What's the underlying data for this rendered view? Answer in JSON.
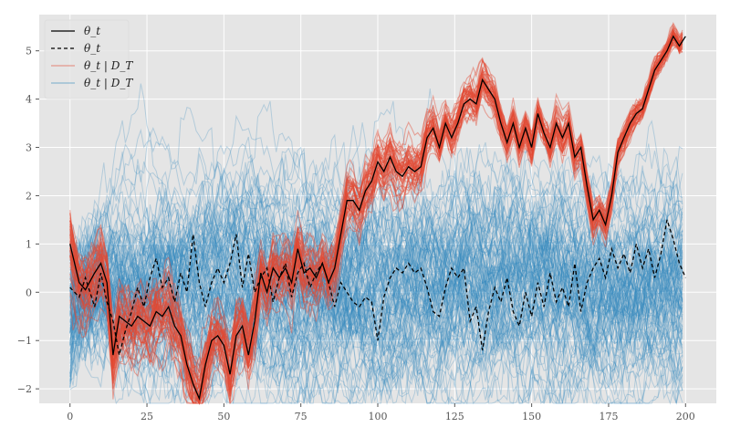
{
  "chart_data": {
    "type": "line",
    "title": "",
    "xlabel": "",
    "ylabel": "",
    "xlim": [
      -10,
      210
    ],
    "ylim": [
      -2.3,
      5.75
    ],
    "xticks": [
      0,
      25,
      50,
      75,
      100,
      125,
      150,
      175,
      200
    ],
    "yticks": [
      -2,
      -1,
      0,
      1,
      2,
      3,
      4,
      5
    ],
    "grid": true,
    "legend_position": "top-left",
    "n_steps": 200,
    "legend": [
      {
        "label": "θ_t",
        "style": "solid",
        "color": "#000000"
      },
      {
        "label": "θ_t",
        "style": "dashed",
        "color": "#000000"
      },
      {
        "label": "θ_t | D_T",
        "style": "solid",
        "color": "#e24a33"
      },
      {
        "label": "θ_t | D_T",
        "style": "solid",
        "color": "#348abd"
      }
    ],
    "series": [
      {
        "name": "θ_t",
        "color": "#000000",
        "style": "solid",
        "points": [
          [
            0,
            1.0
          ],
          [
            3,
            0.2
          ],
          [
            5,
            0.05
          ],
          [
            8,
            0.4
          ],
          [
            10,
            0.6
          ],
          [
            12,
            0.2
          ],
          [
            14,
            -1.3
          ],
          [
            16,
            -0.5
          ],
          [
            18,
            -0.6
          ],
          [
            20,
            -0.7
          ],
          [
            22,
            -0.5
          ],
          [
            24,
            -0.6
          ],
          [
            26,
            -0.7
          ],
          [
            28,
            -0.4
          ],
          [
            30,
            -0.5
          ],
          [
            32,
            -0.3
          ],
          [
            34,
            -0.7
          ],
          [
            36,
            -0.9
          ],
          [
            38,
            -1.5
          ],
          [
            40,
            -1.9
          ],
          [
            42,
            -2.2
          ],
          [
            44,
            -1.5
          ],
          [
            46,
            -1.0
          ],
          [
            48,
            -0.9
          ],
          [
            50,
            -1.1
          ],
          [
            52,
            -1.7
          ],
          [
            54,
            -0.9
          ],
          [
            56,
            -0.7
          ],
          [
            58,
            -1.3
          ],
          [
            60,
            -0.6
          ],
          [
            62,
            0.4
          ],
          [
            64,
            0.0
          ],
          [
            66,
            0.5
          ],
          [
            68,
            0.3
          ],
          [
            70,
            0.5
          ],
          [
            72,
            0.2
          ],
          [
            74,
            0.9
          ],
          [
            76,
            0.4
          ],
          [
            78,
            0.5
          ],
          [
            80,
            0.3
          ],
          [
            82,
            0.6
          ],
          [
            84,
            0.2
          ],
          [
            86,
            0.5
          ],
          [
            88,
            1.2
          ],
          [
            90,
            1.9
          ],
          [
            92,
            1.9
          ],
          [
            94,
            1.7
          ],
          [
            96,
            2.1
          ],
          [
            98,
            2.3
          ],
          [
            100,
            2.7
          ],
          [
            102,
            2.5
          ],
          [
            104,
            2.8
          ],
          [
            106,
            2.5
          ],
          [
            108,
            2.4
          ],
          [
            110,
            2.6
          ],
          [
            112,
            2.5
          ],
          [
            114,
            2.6
          ],
          [
            116,
            3.2
          ],
          [
            118,
            3.4
          ],
          [
            120,
            3.0
          ],
          [
            122,
            3.5
          ],
          [
            124,
            3.2
          ],
          [
            126,
            3.5
          ],
          [
            128,
            3.9
          ],
          [
            130,
            4.0
          ],
          [
            132,
            3.9
          ],
          [
            134,
            4.4
          ],
          [
            136,
            4.2
          ],
          [
            138,
            4.0
          ],
          [
            140,
            3.5
          ],
          [
            142,
            3.1
          ],
          [
            144,
            3.5
          ],
          [
            146,
            3.0
          ],
          [
            148,
            3.4
          ],
          [
            150,
            3.0
          ],
          [
            152,
            3.7
          ],
          [
            154,
            3.3
          ],
          [
            156,
            3.0
          ],
          [
            158,
            3.5
          ],
          [
            160,
            3.2
          ],
          [
            162,
            3.5
          ],
          [
            164,
            2.8
          ],
          [
            166,
            3.0
          ],
          [
            168,
            2.2
          ],
          [
            170,
            1.5
          ],
          [
            172,
            1.7
          ],
          [
            174,
            1.4
          ],
          [
            176,
            2.0
          ],
          [
            178,
            2.9
          ],
          [
            180,
            3.2
          ],
          [
            182,
            3.5
          ],
          [
            184,
            3.7
          ],
          [
            186,
            3.8
          ],
          [
            188,
            4.2
          ],
          [
            190,
            4.6
          ],
          [
            192,
            4.8
          ],
          [
            194,
            5.0
          ],
          [
            196,
            5.3
          ],
          [
            198,
            5.1
          ],
          [
            200,
            5.3
          ]
        ]
      },
      {
        "name": "θ_t",
        "color": "#000000",
        "style": "dashed",
        "points": [
          [
            0,
            0.1
          ],
          [
            3,
            -0.1
          ],
          [
            5,
            0.3
          ],
          [
            8,
            -0.3
          ],
          [
            10,
            0.4
          ],
          [
            12,
            -0.2
          ],
          [
            14,
            -0.6
          ],
          [
            16,
            -1.3
          ],
          [
            18,
            -0.8
          ],
          [
            20,
            -0.4
          ],
          [
            22,
            0.1
          ],
          [
            24,
            -0.3
          ],
          [
            26,
            0.3
          ],
          [
            28,
            0.7
          ],
          [
            30,
            0.1
          ],
          [
            32,
            0.3
          ],
          [
            34,
            -0.2
          ],
          [
            36,
            0.4
          ],
          [
            38,
            0.0
          ],
          [
            40,
            1.2
          ],
          [
            42,
            0.2
          ],
          [
            44,
            -0.3
          ],
          [
            46,
            0.2
          ],
          [
            48,
            0.5
          ],
          [
            50,
            0.2
          ],
          [
            52,
            0.6
          ],
          [
            54,
            1.2
          ],
          [
            56,
            0.1
          ],
          [
            58,
            0.8
          ],
          [
            60,
            0.0
          ],
          [
            62,
            0.3
          ],
          [
            64,
            0.5
          ],
          [
            66,
            -0.2
          ],
          [
            68,
            0.3
          ],
          [
            70,
            0.6
          ],
          [
            72,
            -0.1
          ],
          [
            74,
            0.4
          ],
          [
            76,
            0.6
          ],
          [
            78,
            0.1
          ],
          [
            80,
            0.4
          ],
          [
            82,
            0.6
          ],
          [
            84,
            0.2
          ],
          [
            86,
            -0.3
          ],
          [
            88,
            0.2
          ],
          [
            90,
            0.0
          ],
          [
            92,
            -0.2
          ],
          [
            94,
            -0.3
          ],
          [
            96,
            -0.1
          ],
          [
            98,
            -0.2
          ],
          [
            100,
            -1.0
          ],
          [
            102,
            -0.1
          ],
          [
            104,
            0.3
          ],
          [
            106,
            0.5
          ],
          [
            108,
            0.4
          ],
          [
            110,
            0.6
          ],
          [
            112,
            0.4
          ],
          [
            114,
            0.5
          ],
          [
            116,
            0.1
          ],
          [
            118,
            -0.4
          ],
          [
            120,
            -0.5
          ],
          [
            122,
            0.1
          ],
          [
            124,
            0.5
          ],
          [
            126,
            0.3
          ],
          [
            128,
            0.5
          ],
          [
            130,
            -0.6
          ],
          [
            132,
            -0.3
          ],
          [
            134,
            -1.2
          ],
          [
            136,
            -0.4
          ],
          [
            138,
            0.1
          ],
          [
            140,
            -0.2
          ],
          [
            142,
            0.3
          ],
          [
            144,
            -0.4
          ],
          [
            146,
            -0.7
          ],
          [
            148,
            0.0
          ],
          [
            150,
            -0.5
          ],
          [
            152,
            0.2
          ],
          [
            154,
            -0.3
          ],
          [
            156,
            0.4
          ],
          [
            158,
            -0.2
          ],
          [
            160,
            0.1
          ],
          [
            162,
            -0.3
          ],
          [
            164,
            0.6
          ],
          [
            166,
            -0.4
          ],
          [
            168,
            0.2
          ],
          [
            170,
            0.5
          ],
          [
            172,
            0.7
          ],
          [
            174,
            0.3
          ],
          [
            176,
            0.9
          ],
          [
            178,
            0.5
          ],
          [
            180,
            0.8
          ],
          [
            182,
            0.4
          ],
          [
            184,
            1.0
          ],
          [
            186,
            0.5
          ],
          [
            188,
            0.9
          ],
          [
            190,
            0.3
          ],
          [
            192,
            0.8
          ],
          [
            194,
            1.5
          ],
          [
            196,
            1.1
          ],
          [
            198,
            0.6
          ],
          [
            200,
            0.3
          ]
        ]
      }
    ],
    "ensembles": [
      {
        "name": "θ_t | D_T",
        "color": "#e24a33",
        "count": 50,
        "opacity": 0.45,
        "follows": "solid θ_t",
        "start_spread": 1.1,
        "end_spread": 0.3
      },
      {
        "name": "θ_t | D_T",
        "color": "#348abd",
        "count": 120,
        "opacity": 0.28,
        "center": 0.2,
        "band_low": -1.3,
        "band_high": 1.7
      }
    ]
  }
}
